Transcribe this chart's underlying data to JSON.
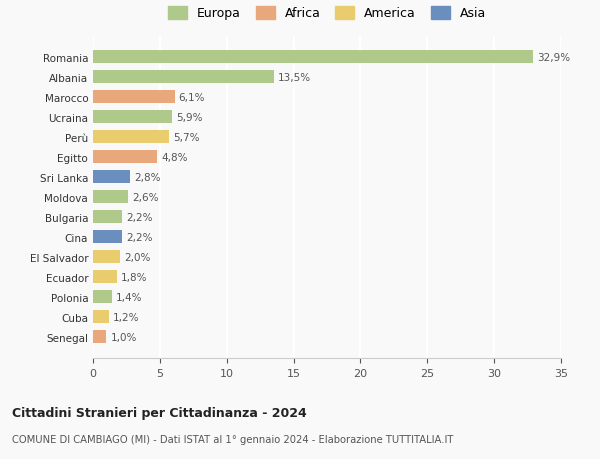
{
  "countries": [
    "Romania",
    "Albania",
    "Marocco",
    "Ucraina",
    "Perù",
    "Egitto",
    "Sri Lanka",
    "Moldova",
    "Bulgaria",
    "Cina",
    "El Salvador",
    "Ecuador",
    "Polonia",
    "Cuba",
    "Senegal"
  ],
  "values": [
    32.9,
    13.5,
    6.1,
    5.9,
    5.7,
    4.8,
    2.8,
    2.6,
    2.2,
    2.2,
    2.0,
    1.8,
    1.4,
    1.2,
    1.0
  ],
  "labels": [
    "32,9%",
    "13,5%",
    "6,1%",
    "5,9%",
    "5,7%",
    "4,8%",
    "2,8%",
    "2,6%",
    "2,2%",
    "2,2%",
    "2,0%",
    "1,8%",
    "1,4%",
    "1,2%",
    "1,0%"
  ],
  "continents": [
    "Europa",
    "Europa",
    "Africa",
    "Europa",
    "America",
    "Africa",
    "Asia",
    "Europa",
    "Europa",
    "Asia",
    "America",
    "America",
    "Europa",
    "America",
    "Africa"
  ],
  "colors": {
    "Europa": "#aec98a",
    "Africa": "#e8a87c",
    "America": "#e8cc6e",
    "Asia": "#6a8fbf"
  },
  "xlim": [
    0,
    35
  ],
  "xticks": [
    0,
    5,
    10,
    15,
    20,
    25,
    30,
    35
  ],
  "title": "Cittadini Stranieri per Cittadinanza - 2024",
  "subtitle": "COMUNE DI CAMBIAGO (MI) - Dati ISTAT al 1° gennaio 2024 - Elaborazione TUTTITALIA.IT",
  "background_color": "#f9f9f9",
  "grid_color": "#ffffff",
  "legend_order": [
    "Europa",
    "Africa",
    "America",
    "Asia"
  ]
}
